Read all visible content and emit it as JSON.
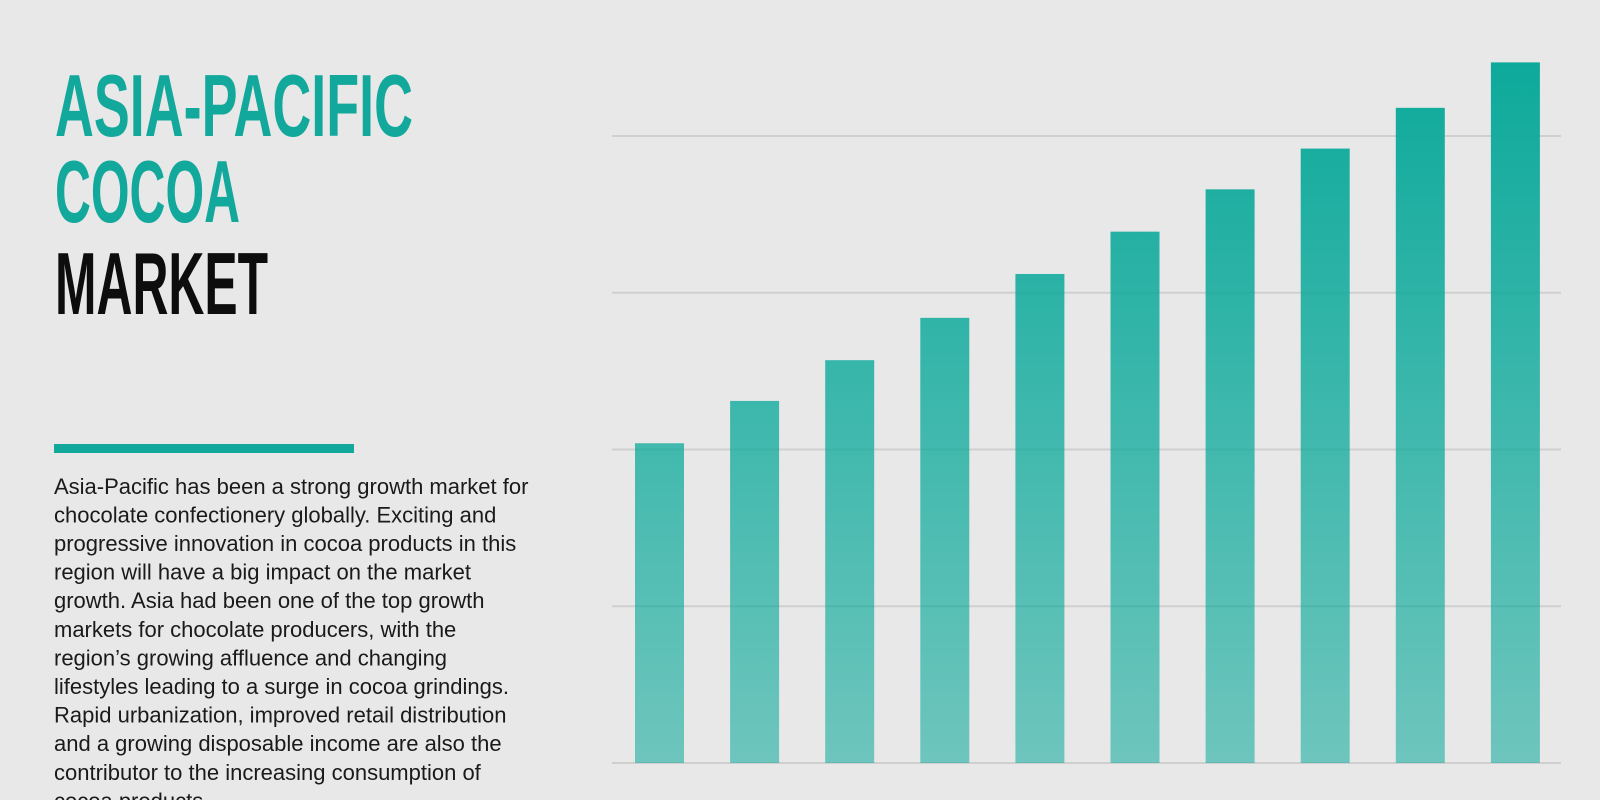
{
  "heading": [
    "ASIA-PACIFIC",
    "COCOA",
    "MARKET"
  ],
  "description": [
    "Asia-Pacific has been a strong growth market for",
    "chocolate confectionery globally. Exciting and",
    "progressive innovation in cocoa products in this",
    "region will have a big impact on the market",
    "growth. Asia had been one of the top growth",
    "markets for chocolate producers, with the",
    "region’s growing affluence and changing",
    "lifestyles leading to a surge in cocoa grindings.",
    "Rapid urbanization, improved retail distribution",
    "and a growing disposable income are also the",
    "contributor to the increasing consumption of",
    "cocoa products."
  ],
  "chart_data": {
    "type": "bar",
    "values": [
      2.04,
      2.31,
      2.57,
      2.84,
      3.12,
      3.39,
      3.66,
      3.92,
      4.18,
      4.47
    ],
    "color": "#0aa99a",
    "ylim": [
      0,
      4.6
    ],
    "yticks": [
      0,
      1,
      2,
      3,
      4
    ],
    "grid": true
  }
}
